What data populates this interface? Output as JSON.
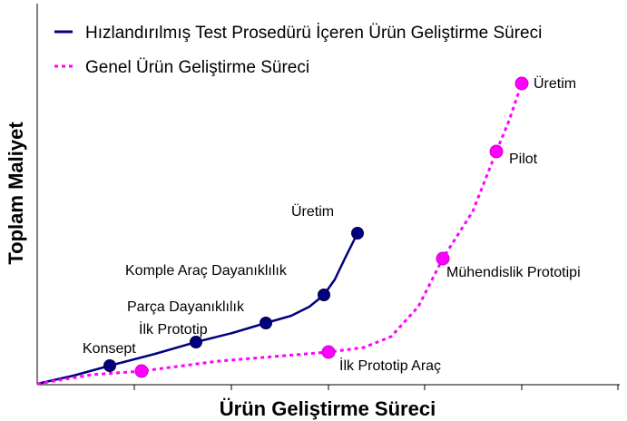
{
  "chart_data": {
    "type": "line",
    "title": "",
    "xlabel": "Ürün Geliştirme Süreci",
    "ylabel": "Toplam Maliyet",
    "xlim": [
      0,
      640
    ],
    "ylim": [
      0,
      335
    ],
    "x_ticks": [
      107,
      214,
      321,
      427,
      534,
      640
    ],
    "show_tick_labels": false,
    "grid": false,
    "legend": "top-left",
    "series": [
      {
        "name": "Hızlandırılmış Test Prosedürü İçeren Ürün Geliştirme Süreci",
        "color": "#000080",
        "style": "solid",
        "line_points": [
          {
            "x": 0,
            "y": 0
          },
          {
            "x": 40,
            "y": 9
          },
          {
            "x": 80,
            "y": 20
          },
          {
            "x": 130,
            "y": 33
          },
          {
            "x": 175,
            "y": 46
          },
          {
            "x": 215,
            "y": 56
          },
          {
            "x": 252,
            "y": 67
          },
          {
            "x": 280,
            "y": 75
          },
          {
            "x": 300,
            "y": 85
          },
          {
            "x": 316,
            "y": 98
          },
          {
            "x": 328,
            "y": 115
          },
          {
            "x": 340,
            "y": 140
          },
          {
            "x": 353,
            "y": 166
          }
        ],
        "markers": [
          {
            "x": 80,
            "y": 20,
            "label": "Konsept"
          },
          {
            "x": 175,
            "y": 46,
            "label": "İlk Prototip"
          },
          {
            "x": 252,
            "y": 67,
            "label": "Parça Dayanıklılık"
          },
          {
            "x": 316,
            "y": 98,
            "label": "Komple Araç Dayanıklılık"
          },
          {
            "x": 353,
            "y": 166,
            "label": "Üretim"
          }
        ]
      },
      {
        "name": "Genel Ürün Geliştirme Süreci",
        "color": "#ff00ff",
        "style": "dashed",
        "line_points": [
          {
            "x": 0,
            "y": 0
          },
          {
            "x": 60,
            "y": 10
          },
          {
            "x": 115,
            "y": 14
          },
          {
            "x": 200,
            "y": 25
          },
          {
            "x": 321,
            "y": 35
          },
          {
            "x": 360,
            "y": 40
          },
          {
            "x": 390,
            "y": 52
          },
          {
            "x": 420,
            "y": 85
          },
          {
            "x": 447,
            "y": 138
          },
          {
            "x": 480,
            "y": 190
          },
          {
            "x": 506,
            "y": 256
          },
          {
            "x": 520,
            "y": 290
          },
          {
            "x": 534,
            "y": 331
          }
        ],
        "markers": [
          {
            "x": 115,
            "y": 14,
            "label": ""
          },
          {
            "x": 321,
            "y": 35,
            "label": "İlk Prototip Araç"
          },
          {
            "x": 447,
            "y": 138,
            "label": "Mühendislik Prototipi"
          },
          {
            "x": 506,
            "y": 256,
            "label": "Pilot"
          },
          {
            "x": 534,
            "y": 331,
            "label": "Üretim"
          }
        ]
      }
    ]
  }
}
